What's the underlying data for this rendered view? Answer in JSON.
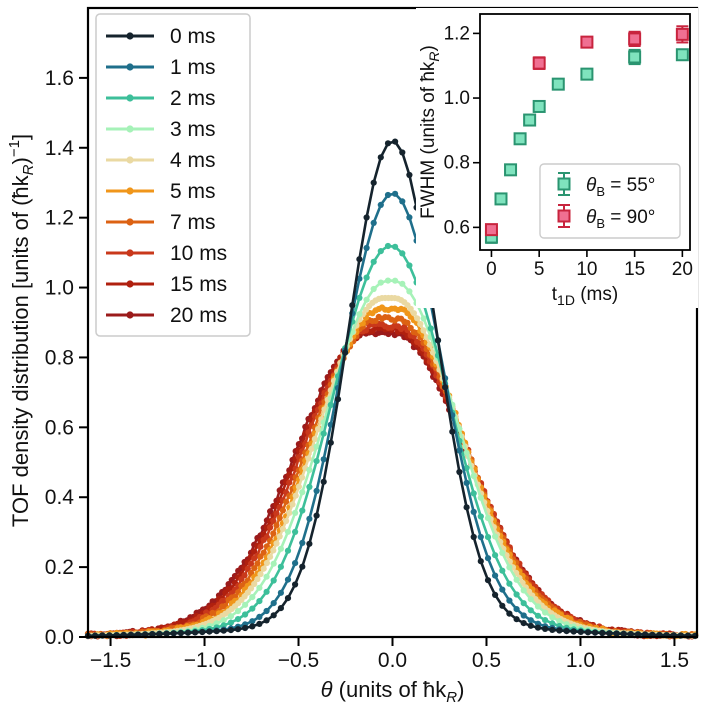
{
  "chart_data": [
    {
      "type": "line",
      "xlabel": "θ (units of ħk",
      "xlabel_sub": "R",
      "xlabel_end": ")",
      "ylabel": "TOF density distribution [units of (ħk",
      "ylabel_sub": "R",
      "ylabel_end": ")",
      "ylabel_sup": "−1",
      "ylabel_close": "]",
      "xlim": [
        -1.62,
        1.62
      ],
      "ylim": [
        0.0,
        1.8
      ],
      "xticks": [
        -1.5,
        -1.0,
        -0.5,
        0.0,
        0.5,
        1.0,
        1.5
      ],
      "xtick_labels": [
        "−1.5",
        "−1.0",
        "−0.5",
        "0.0",
        "0.5",
        "1.0",
        "1.5"
      ],
      "yticks": [
        0.0,
        0.2,
        0.4,
        0.6,
        0.8,
        1.0,
        1.2,
        1.4,
        1.6
      ],
      "ytick_labels": [
        "0.0",
        "0.2",
        "0.4",
        "0.6",
        "0.8",
        "1.0",
        "1.2",
        "1.4",
        "1.6"
      ],
      "legend_position": "top-left",
      "series": [
        {
          "name": "0 ms",
          "color": "#15232d",
          "peak": 1.42,
          "center": 0.0,
          "sigma": 0.235,
          "flat": 0.0
        },
        {
          "name": "1 ms",
          "color": "#1f6f8b",
          "peak": 1.27,
          "center": 0.0,
          "sigma": 0.265,
          "flat": 0.0
        },
        {
          "name": "2 ms",
          "color": "#3dbf9a",
          "peak": 1.12,
          "center": -0.01,
          "sigma": 0.305,
          "flat": 0.0
        },
        {
          "name": "3 ms",
          "color": "#a6f2b8",
          "peak": 1.02,
          "center": -0.01,
          "sigma": 0.33,
          "flat": 0.05
        },
        {
          "name": "4 ms",
          "color": "#ead9a2",
          "peak": 0.97,
          "center": -0.02,
          "sigma": 0.345,
          "flat": 0.08
        },
        {
          "name": "5 ms",
          "color": "#f0961a",
          "peak": 0.94,
          "center": -0.02,
          "sigma": 0.355,
          "flat": 0.1
        },
        {
          "name": "7 ms",
          "color": "#dc6213",
          "peak": 0.91,
          "center": -0.03,
          "sigma": 0.365,
          "flat": 0.12
        },
        {
          "name": "10 ms",
          "color": "#c9381b",
          "peak": 0.89,
          "center": -0.04,
          "sigma": 0.375,
          "flat": 0.14
        },
        {
          "name": "15 ms",
          "color": "#b0200f",
          "peak": 0.88,
          "center": -0.05,
          "sigma": 0.38,
          "flat": 0.15
        },
        {
          "name": "20 ms",
          "color": "#9b1b1b",
          "peak": 0.87,
          "center": -0.06,
          "sigma": 0.385,
          "flat": 0.16
        }
      ]
    },
    {
      "type": "scatter",
      "xlabel": "t",
      "xlabel_sub": "1D",
      "xlabel_end": " (ms)",
      "ylabel": "FWHM (units of ħk",
      "ylabel_sub": "R",
      "ylabel_end": ")",
      "xlim": [
        -1.2,
        20.8
      ],
      "ylim": [
        0.53,
        1.26
      ],
      "xticks": [
        0,
        5,
        10,
        15,
        20
      ],
      "xtick_labels": [
        "0",
        "5",
        "10",
        "15",
        "20"
      ],
      "yticks": [
        0.6,
        0.8,
        1.0,
        1.2
      ],
      "ytick_labels": [
        "0.6",
        "0.8",
        "1.0",
        "1.2"
      ],
      "legend_position": "bottom-right",
      "series": [
        {
          "name": "θ",
          "name_sub": "B",
          "name_end": " = 55°",
          "fill": "#7fe3be",
          "edge": "#2a9470",
          "points": [
            {
              "x": 0,
              "y": 0.57,
              "err": 0.018
            },
            {
              "x": 1,
              "y": 0.688,
              "err": 0.012
            },
            {
              "x": 2,
              "y": 0.778,
              "err": 0.012
            },
            {
              "x": 3,
              "y": 0.874,
              "err": 0.012
            },
            {
              "x": 4,
              "y": 0.932,
              "err": 0.012
            },
            {
              "x": 5,
              "y": 0.974,
              "err": 0.012
            },
            {
              "x": 7,
              "y": 1.043,
              "err": 0.012
            },
            {
              "x": 10,
              "y": 1.074,
              "err": 0.014
            },
            {
              "x": 15,
              "y": 1.127,
              "err": 0.022
            },
            {
              "x": 20,
              "y": 1.134,
              "err": 0.015
            }
          ]
        },
        {
          "name": "θ",
          "name_sub": "B",
          "name_end": " = 90°",
          "fill": "#f07092",
          "edge": "#c8243e",
          "points": [
            {
              "x": 0,
              "y": 0.593,
              "err": 0.012
            },
            {
              "x": 5,
              "y": 1.108,
              "err": 0.018
            },
            {
              "x": 10,
              "y": 1.173,
              "err": 0.015
            },
            {
              "x": 15,
              "y": 1.183,
              "err": 0.022
            },
            {
              "x": 20,
              "y": 1.197,
              "err": 0.025
            }
          ]
        }
      ]
    }
  ]
}
